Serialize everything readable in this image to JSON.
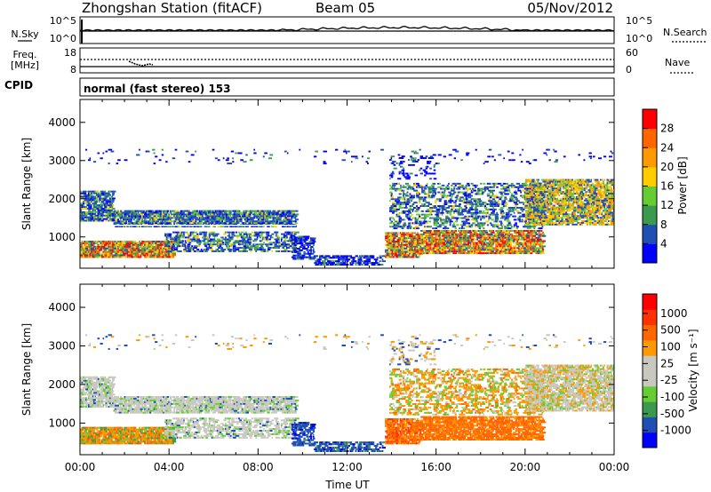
{
  "header": {
    "station": "Zhongshan Station (fitACF)",
    "beam": "Beam 05",
    "date": "05/Nov/2012"
  },
  "strip_nsky": {
    "left_label": "N.Sky",
    "right_label": "N.Search",
    "left_ticks": [
      "10^5",
      "10^0"
    ],
    "right_ticks": [
      "10^5",
      "10^0"
    ]
  },
  "strip_freq": {
    "left_label_1": "Freq.",
    "left_label_2": "[MHz]",
    "right_label": "Nave",
    "left_ticks": [
      "18",
      "8"
    ],
    "right_ticks": [
      "60",
      "0"
    ]
  },
  "cpid": {
    "label": "CPID",
    "text": "normal (fast stereo) 153"
  },
  "colors": {
    "power": [
      "#0000ff",
      "#1f4fb3",
      "#3c9a4f",
      "#66cc33",
      "#ffcc00",
      "#ff9900",
      "#ff6600",
      "#ff0000"
    ],
    "velocity": [
      "#ff0000",
      "#ff3300",
      "#ff6600",
      "#ff9900",
      "#c8c8c0",
      "#c8c8c0",
      "#66cc33",
      "#3c9a4f",
      "#1f4fb3",
      "#0000ff"
    ]
  },
  "chart_data": [
    {
      "type": "heatmap",
      "name": "power",
      "ylabel": "Slant Range [km]",
      "yticks": [
        "1000",
        "2000",
        "3000",
        "4000"
      ],
      "ylim": [
        180,
        4600
      ],
      "xlim": [
        0,
        24
      ],
      "colorbar_label": "Power [dB]",
      "colorbar_ticks": [
        "4",
        "8",
        "12",
        "16",
        "20",
        "24",
        "28"
      ],
      "clim": [
        0,
        32
      ]
    },
    {
      "type": "heatmap",
      "name": "velocity",
      "ylabel": "Slant Range [km]",
      "yticks": [
        "1000",
        "2000",
        "3000",
        "4000"
      ],
      "ylim": [
        180,
        4600
      ],
      "xlim": [
        0,
        24
      ],
      "xlabel": "Time UT",
      "xticks": [
        "00:00",
        "04:00",
        "08:00",
        "12:00",
        "16:00",
        "20:00",
        "00:00"
      ],
      "colorbar_label": "Velocity [m s⁻¹]",
      "colorbar_ticks": [
        "1000",
        "500",
        "100",
        "25",
        "-25",
        "-100",
        "-500",
        "-1000"
      ]
    }
  ]
}
